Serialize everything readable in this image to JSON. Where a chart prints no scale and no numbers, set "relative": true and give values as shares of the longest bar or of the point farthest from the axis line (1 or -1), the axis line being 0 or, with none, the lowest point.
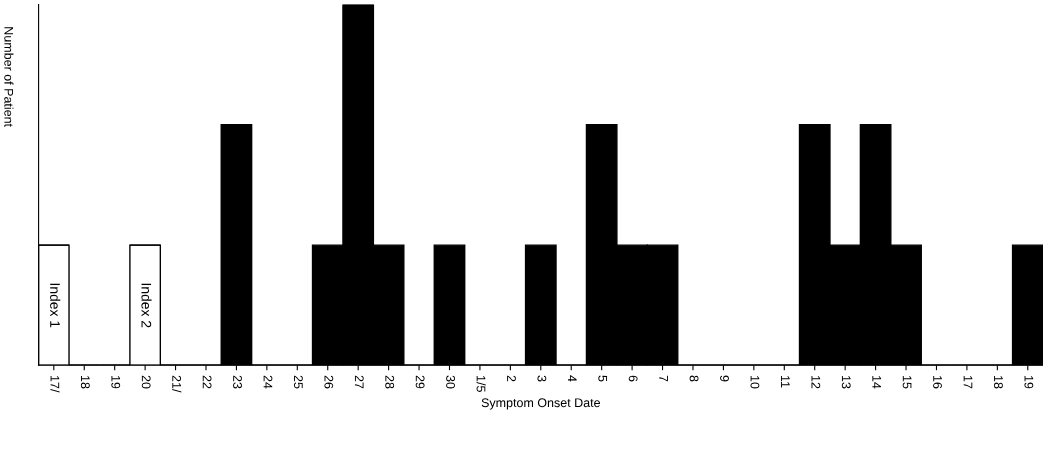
{
  "chart_data": {
    "type": "bar",
    "stacked": true,
    "relative": true,
    "xlabel": "Symptom Onset Date",
    "ylabel": "Number of Patient",
    "categories": [
      "17/",
      "18",
      "19",
      "20",
      "21/",
      "22",
      "23",
      "24",
      "25",
      "26",
      "27",
      "28",
      "29",
      "30",
      "1/5",
      "2",
      "3",
      "4",
      "5",
      "6",
      "7",
      "8",
      "9",
      "10",
      "11",
      "12",
      "13",
      "14",
      "15",
      "16",
      "17",
      "18",
      "19"
    ],
    "series": [
      {
        "color": "#ffffff",
        "values": [
          0.333,
          0,
          0,
          0.333,
          0,
          0,
          0,
          0,
          0,
          0,
          0,
          0,
          0,
          0,
          0,
          0,
          0,
          0,
          0,
          0,
          0,
          0,
          0,
          0,
          0,
          0,
          0,
          0,
          0,
          0,
          0,
          0,
          0
        ]
      },
      {
        "color": "#000000",
        "values": [
          0,
          0,
          0,
          0,
          0,
          0,
          0.667,
          0,
          0,
          0.333,
          1,
          0.333,
          0,
          0.333,
          0,
          0,
          0.333,
          0,
          0.667,
          0.333,
          0.333,
          0,
          0,
          0,
          0,
          0.667,
          0.333,
          0.667,
          0.333,
          0,
          0,
          0,
          0.333
        ]
      }
    ],
    "annotations": [
      "Index 1",
      "Index 2"
    ],
    "grid": false
  }
}
